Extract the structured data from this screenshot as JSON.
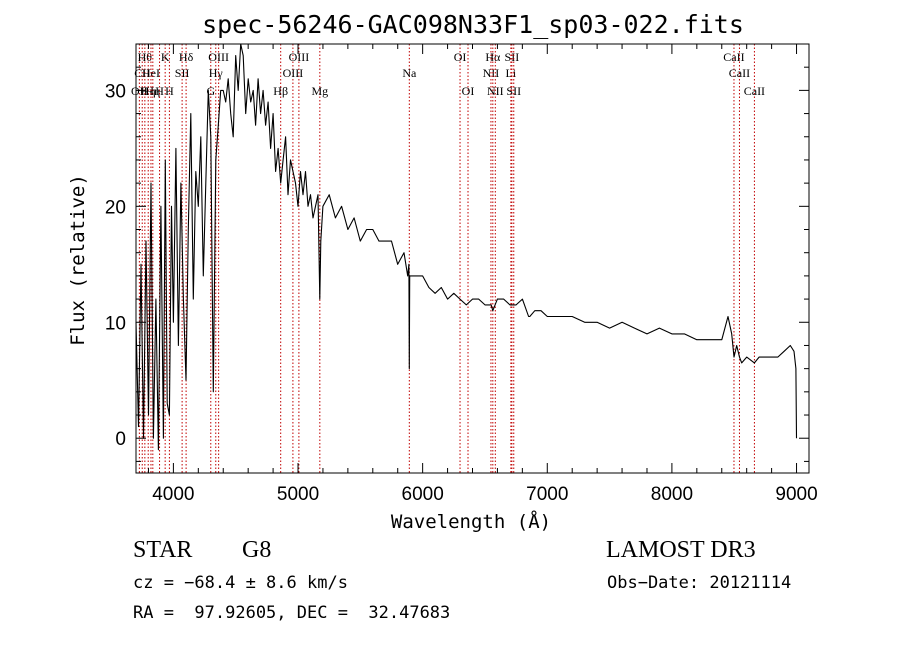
{
  "chart_data": {
    "type": "line",
    "title": "spec-56246-GAC098N33F1_sp03-022.fits",
    "xlabel": "Wavelength (Å)",
    "ylabel": "Flux (relative)",
    "xlim": [
      3700,
      9100
    ],
    "ylim": [
      -3,
      34
    ],
    "xticks": [
      4000,
      5000,
      6000,
      7000,
      8000,
      9000
    ],
    "yticks": [
      0,
      10,
      20,
      30
    ],
    "series": [
      {
        "name": "flux",
        "x": [
          3700,
          3720,
          3740,
          3760,
          3780,
          3800,
          3820,
          3840,
          3860,
          3880,
          3900,
          3920,
          3935,
          3950,
          3968,
          3985,
          4000,
          4020,
          4040,
          4060,
          4080,
          4101,
          4120,
          4140,
          4160,
          4180,
          4200,
          4220,
          4240,
          4260,
          4280,
          4300,
          4320,
          4340,
          4360,
          4380,
          4400,
          4420,
          4440,
          4460,
          4480,
          4500,
          4520,
          4540,
          4560,
          4580,
          4600,
          4620,
          4640,
          4660,
          4680,
          4700,
          4720,
          4740,
          4760,
          4780,
          4800,
          4820,
          4840,
          4861,
          4880,
          4900,
          4920,
          4940,
          4960,
          4980,
          5000,
          5020,
          5040,
          5060,
          5080,
          5100,
          5120,
          5140,
          5160,
          5175,
          5183,
          5200,
          5250,
          5300,
          5350,
          5400,
          5450,
          5500,
          5550,
          5600,
          5650,
          5700,
          5750,
          5800,
          5850,
          5880,
          5890,
          5893,
          5896,
          5900,
          5950,
          6000,
          6050,
          6100,
          6150,
          6200,
          6250,
          6300,
          6350,
          6400,
          6450,
          6500,
          6550,
          6563,
          6600,
          6650,
          6700,
          6750,
          6800,
          6850,
          6860,
          6900,
          6950,
          7000,
          7100,
          7200,
          7300,
          7400,
          7500,
          7600,
          7700,
          7800,
          7900,
          8000,
          8100,
          8200,
          8300,
          8400,
          8450,
          8480,
          8498,
          8520,
          8542,
          8560,
          8600,
          8662,
          8700,
          8750,
          8800,
          8850,
          8900,
          8950,
          8980,
          8995,
          9000
        ],
        "values": [
          10,
          1,
          15,
          0,
          17,
          2,
          22,
          0,
          12,
          -1,
          20,
          0,
          24,
          3,
          2,
          20,
          10,
          25,
          8,
          22,
          12,
          5,
          18,
          28,
          12,
          23,
          20,
          26,
          14,
          22,
          30,
          26,
          4,
          24,
          27,
          30,
          30,
          29,
          31,
          28,
          26,
          33,
          30,
          34,
          33,
          28,
          31,
          29,
          30,
          27,
          31,
          28,
          30,
          27,
          29,
          25,
          28,
          23,
          25,
          22,
          24,
          26,
          21,
          24,
          23,
          22,
          20,
          23,
          21,
          23,
          20,
          21,
          19,
          20,
          21,
          12,
          17,
          20,
          21,
          19,
          20,
          18,
          19,
          17,
          18,
          18,
          17,
          17,
          17,
          15,
          16,
          14,
          15,
          6,
          14,
          14,
          14,
          14,
          13,
          12.5,
          13,
          12,
          12.5,
          12,
          11.5,
          12,
          12,
          11.5,
          11.5,
          11,
          12,
          12,
          11.5,
          11.5,
          12,
          10.5,
          10.5,
          11,
          11,
          10.5,
          10.5,
          10.5,
          10,
          10,
          9.5,
          10,
          9.5,
          9,
          9.5,
          9,
          9,
          8.5,
          8.5,
          8.5,
          10.5,
          9,
          7,
          8,
          7,
          6.5,
          7,
          6.5,
          7,
          7,
          7,
          7,
          7.5,
          8,
          7.5,
          6,
          0
        ]
      }
    ],
    "lines": [
      {
        "x": 3727,
        "labels": [
          "OII"
        ],
        "row": 3
      },
      {
        "x": 3750,
        "labels": [
          "CII"
        ],
        "row": 2
      },
      {
        "x": 3771,
        "labels": [
          "Hθ"
        ],
        "row": 1
      },
      {
        "x": 3798,
        "labels": [
          "Hη"
        ],
        "row": 3
      },
      {
        "x": 3820,
        "labels": [
          "HeI"
        ],
        "row": 2
      },
      {
        "x": 3835,
        "labels": [
          "Hη"
        ],
        "row": 3
      },
      {
        "x": 3889,
        "labels": [
          "H"
        ],
        "row": 3
      },
      {
        "x": 3934,
        "labels": [
          "K"
        ],
        "row": 1
      },
      {
        "x": 3968,
        "labels": [
          "H"
        ],
        "row": 3
      },
      {
        "x": 4070,
        "labels": [
          "SII"
        ],
        "row": 2
      },
      {
        "x": 4102,
        "labels": [
          "Hδ"
        ],
        "row": 1
      },
      {
        "x": 4300,
        "labels": [
          "G"
        ],
        "row": 3
      },
      {
        "x": 4340,
        "labels": [
          "Hγ"
        ],
        "row": 2
      },
      {
        "x": 4363,
        "labels": [
          "OIII"
        ],
        "row": 1
      },
      {
        "x": 4861,
        "labels": [
          "Hβ"
        ],
        "row": 3
      },
      {
        "x": 4959,
        "labels": [
          "OIII"
        ],
        "row": 2
      },
      {
        "x": 5007,
        "labels": [
          "OIII"
        ],
        "row": 1
      },
      {
        "x": 5175,
        "labels": [
          "Mg"
        ],
        "row": 3
      },
      {
        "x": 5893,
        "labels": [
          "Na"
        ],
        "row": 2
      },
      {
        "x": 6300,
        "labels": [
          "OI"
        ],
        "row": 1
      },
      {
        "x": 6364,
        "labels": [
          "OI"
        ],
        "row": 3
      },
      {
        "x": 6548,
        "labels": [
          "NII"
        ],
        "row": 2
      },
      {
        "x": 6563,
        "labels": [
          "Hα"
        ],
        "row": 1
      },
      {
        "x": 6583,
        "labels": [
          "NII"
        ],
        "row": 3
      },
      {
        "x": 6708,
        "labels": [
          "Li"
        ],
        "row": 2
      },
      {
        "x": 6716,
        "labels": [
          "SII"
        ],
        "row": 1
      },
      {
        "x": 6731,
        "labels": [
          "SII"
        ],
        "row": 3
      },
      {
        "x": 8498,
        "labels": [
          "CaII"
        ],
        "row": 1
      },
      {
        "x": 8542,
        "labels": [
          "CaII"
        ],
        "row": 2
      },
      {
        "x": 8662,
        "labels": [
          "CaII"
        ],
        "row": 3
      }
    ]
  },
  "info": {
    "class_label": "STAR",
    "subclass": "G8",
    "survey": "LAMOST DR3",
    "redshift_line": "cz = −68.4 ± 8.6 km/s",
    "obs_date": "Obs−Date: 20121114",
    "coords": "RA =  97.92605, DEC =  32.47683"
  },
  "colors": {
    "spectrum": "#000000",
    "line_markers": "#c00000",
    "axes": "#000000"
  }
}
